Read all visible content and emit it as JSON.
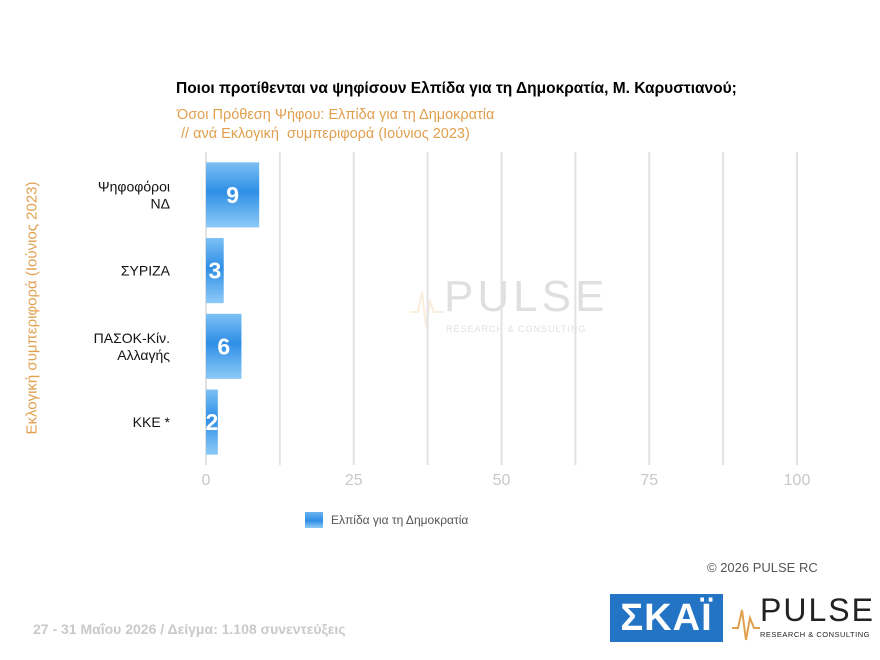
{
  "chart_data": {
    "type": "bar",
    "orientation": "horizontal",
    "title": "Ποιοι προτίθενται να ψηφίσουν Ελπίδα για τη Δημοκρατία, Μ. Καρυστιανού;",
    "subtitle_line1": "Όσοι Πρόθεση Ψήφου: Ελπίδα για τη Δημοκρατία",
    "subtitle_line2": " // ανά Εκλογική  συμπεριφορά (Ιούνιος 2023)",
    "ylabel": "Εκλογική  συμπεριφορά (Ιούνιος 2023)",
    "categories": [
      [
        "Ψηφοφόροι",
        "ΝΔ"
      ],
      [
        "ΣΥΡΙΖΑ"
      ],
      [
        "ΠΑΣΟΚ-Κίν.",
        "Αλλαγής"
      ],
      [
        "ΚΚΕ *"
      ]
    ],
    "series": [
      {
        "name": "Ελπίδα για τη Δημοκρατία",
        "values": [
          9,
          3,
          6,
          2
        ]
      }
    ],
    "xlim": [
      0,
      100
    ],
    "xticks": [
      "0",
      "25",
      "50",
      "75",
      "100"
    ],
    "grid": true,
    "legend": "bottom-left",
    "bar_color": "#2f8fe6"
  },
  "copyright": "©  2026  PULSE RC",
  "footer": "27 - 31  Μαΐου 2026  /  Δείγμα:  1.108 συνεντεύξεις",
  "logos": {
    "skai": "ΣΚΑΪ",
    "pulse": "PULSE",
    "pulse_sub": "RESEARCH & CONSULTING",
    "watermark": "PULSE",
    "watermark_sub": "RESEARCH & CONSULTING"
  }
}
